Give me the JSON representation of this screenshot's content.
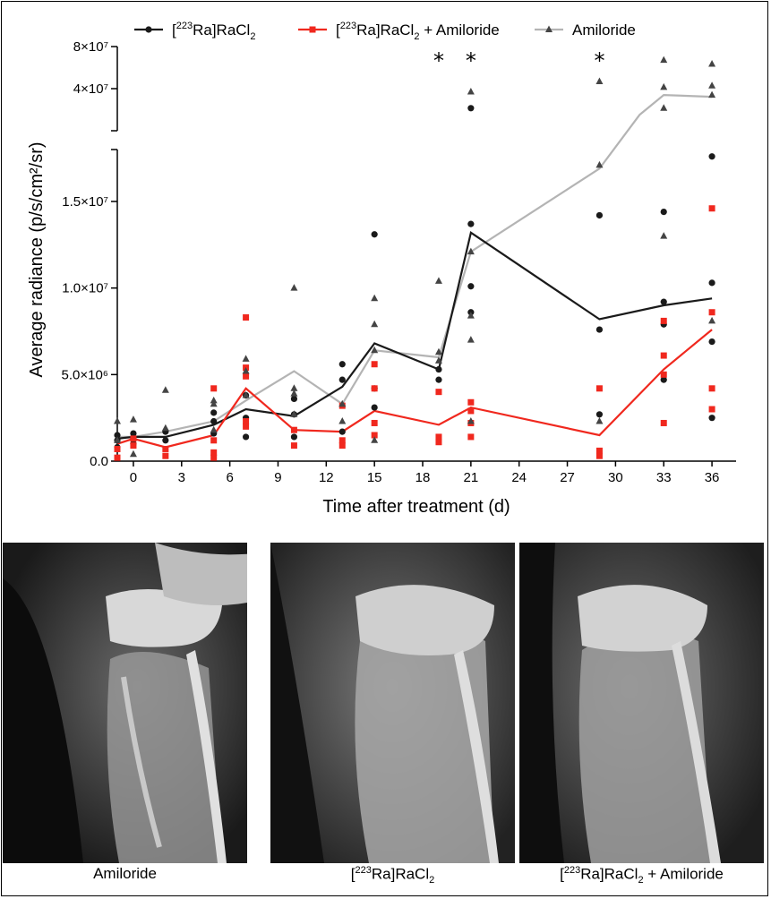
{
  "chart_data": {
    "type": "line",
    "xlabel": "Time after treatment (d)",
    "ylabel": "Average radiance (p/s/cm²/sr)",
    "x_ticks": [
      0,
      3,
      6,
      9,
      12,
      15,
      18,
      21,
      24,
      27,
      30,
      33,
      36
    ],
    "y_ticks_lower": [
      "0.0",
      "5.0×10⁶",
      "1.0×10⁷",
      "1.5×10⁷"
    ],
    "y_ticks_upper": [
      "4×10⁷",
      "8×10⁷"
    ],
    "y_break": true,
    "ylim_lower": [
      0,
      18000000
    ],
    "ylim_upper": [
      20000000,
      80000000
    ],
    "xlim": [
      -1,
      37.5
    ],
    "legend_position": "top",
    "significance_marker": "*",
    "significance_days": [
      19,
      21,
      29
    ],
    "series": [
      {
        "legend_prefix": "[",
        "legend_sup": "223",
        "legend_suffix": "Ra]RaCl",
        "legend_sub": "2",
        "color": "#1a1a1a",
        "marker": "circle",
        "mean": [
          [
            -1,
            1300000
          ],
          [
            0,
            1400000
          ],
          [
            2,
            1400000
          ],
          [
            5,
            2100000
          ],
          [
            7,
            3000000
          ],
          [
            10,
            2600000
          ],
          [
            13,
            4300000
          ],
          [
            15,
            6800000
          ],
          [
            19,
            5300000
          ],
          [
            21,
            13200000
          ],
          [
            29,
            8200000
          ],
          [
            33,
            9000000
          ],
          [
            36,
            9400000
          ]
        ],
        "points": [
          [
            -1,
            800000.0
          ],
          [
            -1,
            1200000.0
          ],
          [
            -1,
            1500000.0
          ],
          [
            0,
            1000000.0
          ],
          [
            0,
            1300000.0
          ],
          [
            0,
            1600000.0
          ],
          [
            2,
            1200000.0
          ],
          [
            2,
            1700000.0
          ],
          [
            5,
            1600000.0
          ],
          [
            5,
            2300000.0
          ],
          [
            5,
            2800000.0
          ],
          [
            7,
            1400000.0
          ],
          [
            7,
            2500000.0
          ],
          [
            7,
            3800000.0
          ],
          [
            10,
            1400000.0
          ],
          [
            10,
            2700000.0
          ],
          [
            10,
            3600000.0
          ],
          [
            13,
            1700000.0
          ],
          [
            13,
            4700000.0
          ],
          [
            13,
            5600000.0
          ],
          [
            15,
            3100000.0
          ],
          [
            15,
            4200000.0
          ],
          [
            15,
            13100000.0
          ],
          [
            19,
            4700000.0
          ],
          [
            19,
            5300000.0
          ],
          [
            21,
            8600000.0
          ],
          [
            21,
            10100000.0
          ],
          [
            21,
            13700000.0
          ],
          [
            21,
            29000000.0
          ],
          [
            29,
            2700000.0
          ],
          [
            29,
            7600000.0
          ],
          [
            29,
            14200000.0
          ],
          [
            33,
            4700000.0
          ],
          [
            33,
            7900000.0
          ],
          [
            33,
            9200000.0
          ],
          [
            33,
            14400000.0
          ],
          [
            36,
            2500000.0
          ],
          [
            36,
            6900000.0
          ],
          [
            36,
            10300000.0
          ],
          [
            36,
            17600000.0
          ]
        ]
      },
      {
        "legend_prefix": "[",
        "legend_sup": "223",
        "legend_suffix": "Ra]RaCl",
        "legend_sub": "2",
        "legend_extra": " + Amiloride",
        "color": "#f0281e",
        "marker": "square",
        "mean": [
          [
            -1,
            1000000
          ],
          [
            0,
            1300000
          ],
          [
            2,
            800000
          ],
          [
            5,
            1500000
          ],
          [
            7,
            4200000
          ],
          [
            10,
            1800000
          ],
          [
            13,
            1700000
          ],
          [
            15,
            2900000
          ],
          [
            19,
            2100000
          ],
          [
            21,
            3100000
          ],
          [
            29,
            1500000
          ],
          [
            33,
            5300000
          ],
          [
            36,
            7600000
          ]
        ],
        "points": [
          [
            -1,
            200000.0
          ],
          [
            -1,
            700000.0
          ],
          [
            0,
            1300000.0
          ],
          [
            0,
            900000.0
          ],
          [
            2,
            300000.0
          ],
          [
            2,
            700000.0
          ],
          [
            5,
            200000.0
          ],
          [
            5,
            500000.0
          ],
          [
            5,
            1200000.0
          ],
          [
            5,
            4200000.0
          ],
          [
            7,
            2000000.0
          ],
          [
            7,
            2300000.0
          ],
          [
            7,
            4900000.0
          ],
          [
            7,
            5400000.0
          ],
          [
            7,
            8300000.0
          ],
          [
            10,
            900000.0
          ],
          [
            10,
            1800000.0
          ],
          [
            13,
            900000.0
          ],
          [
            13,
            1200000.0
          ],
          [
            13,
            3200000.0
          ],
          [
            15,
            1500000.0
          ],
          [
            15,
            2200000.0
          ],
          [
            15,
            4200000.0
          ],
          [
            15,
            5600000.0
          ],
          [
            19,
            1100000.0
          ],
          [
            19,
            1400000.0
          ],
          [
            19,
            4000000.0
          ],
          [
            21,
            1400000.0
          ],
          [
            21,
            2200000.0
          ],
          [
            21,
            2900000.0
          ],
          [
            21,
            3400000.0
          ],
          [
            29,
            300000.0
          ],
          [
            29,
            600000.0
          ],
          [
            29,
            4200000.0
          ],
          [
            33,
            2200000.0
          ],
          [
            33,
            5000000.0
          ],
          [
            33,
            6100000.0
          ],
          [
            33,
            8100000.0
          ],
          [
            36,
            3000000.0
          ],
          [
            36,
            4200000.0
          ],
          [
            36,
            8600000.0
          ],
          [
            36,
            14600000.0
          ]
        ]
      },
      {
        "legend_prefix": "Amiloride",
        "color": "#b4b4b4",
        "point_color": "#444444",
        "marker": "triangle",
        "mean": [
          [
            -1,
            1400000
          ],
          [
            0,
            1400000
          ],
          [
            2,
            1700000
          ],
          [
            5,
            2300000
          ],
          [
            7,
            3500000
          ],
          [
            10,
            5200000
          ],
          [
            13,
            3300000
          ],
          [
            15,
            6400000
          ],
          [
            19,
            6000000
          ],
          [
            21,
            12100000
          ],
          [
            29,
            16900000
          ],
          [
            31.5,
            26000000
          ],
          [
            33,
            36000000
          ],
          [
            36,
            35000000
          ]
        ],
        "points": [
          [
            -1,
            1200000.0
          ],
          [
            -1,
            2300000.0
          ],
          [
            0,
            400000.0
          ],
          [
            0,
            2400000.0
          ],
          [
            2,
            1900000.0
          ],
          [
            2,
            4100000.0
          ],
          [
            5,
            1800000.0
          ],
          [
            5,
            3300000.0
          ],
          [
            5,
            3500000.0
          ],
          [
            7,
            3800000.0
          ],
          [
            7,
            5900000.0
          ],
          [
            7,
            5200000.0
          ],
          [
            10,
            2700000.0
          ],
          [
            10,
            3900000.0
          ],
          [
            10,
            4200000.0
          ],
          [
            10,
            10000000.0
          ],
          [
            13,
            2300000.0
          ],
          [
            13,
            3300000.0
          ],
          [
            15,
            1200000.0
          ],
          [
            15,
            6400000.0
          ],
          [
            15,
            7900000.0
          ],
          [
            15,
            9400000.0
          ],
          [
            19,
            5800000.0
          ],
          [
            19,
            6300000.0
          ],
          [
            19,
            10400000.0
          ],
          [
            21,
            2300000.0
          ],
          [
            21,
            7000000.0
          ],
          [
            21,
            8400000.0
          ],
          [
            21,
            12100000.0
          ],
          [
            21,
            38000000.0
          ],
          [
            29,
            2300000.0
          ],
          [
            29,
            17100000.0
          ],
          [
            29,
            45000000.0
          ],
          [
            33,
            13000000.0
          ],
          [
            33,
            29000000.0
          ],
          [
            33,
            41000000.0
          ],
          [
            33,
            64000000.0
          ],
          [
            36,
            8100000.0
          ],
          [
            36,
            36000000.0
          ],
          [
            36,
            42000000.0
          ],
          [
            36,
            60000000.0
          ]
        ]
      }
    ]
  },
  "panels": [
    {
      "caption_prefix": "Amiloride"
    },
    {
      "caption_prefix": "[",
      "caption_sup": "223",
      "caption_suffix": "Ra]RaCl",
      "caption_sub": "2"
    },
    {
      "caption_prefix": "[",
      "caption_sup": "223",
      "caption_suffix": "Ra]RaCl",
      "caption_sub": "2",
      "caption_extra": " + Amiloride"
    }
  ]
}
